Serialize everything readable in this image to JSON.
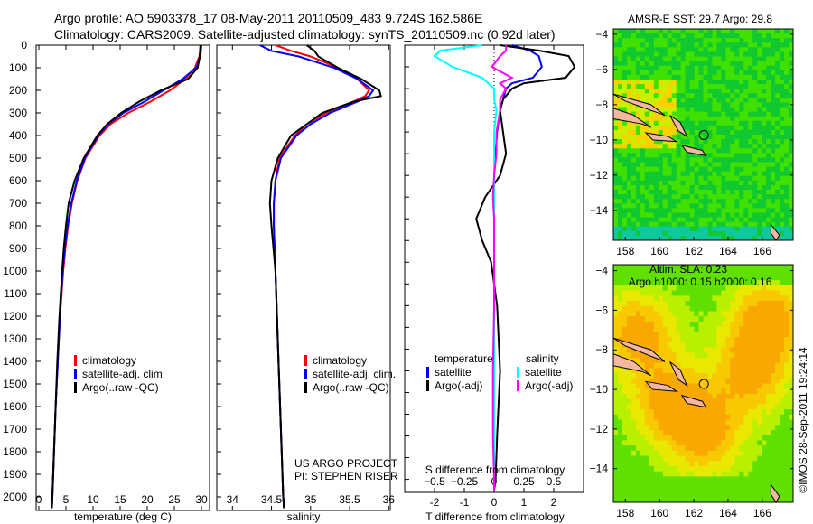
{
  "header": {
    "line1": "Argo profile: AO 5903378_17 08-May-2011 20110509_483 9.724S 162.586E",
    "line2": "Climatology: CARS2009. Satellite-adjusted climatology: synTS_20110509.nc (0.92d later)"
  },
  "colors": {
    "climatology": "#ff0000",
    "satellite": "#0000ff",
    "argo": "#000000",
    "s_satellite": "#00ffff",
    "s_argo": "#ff00ff"
  },
  "chart_data": [
    {
      "type": "line",
      "id": "temperature",
      "xlabel": "temperature (deg C)",
      "ylabel": "",
      "xlim": [
        -0.5,
        31.5
      ],
      "ylim": [
        2060,
        0
      ],
      "xticks": [
        0,
        5,
        10,
        15,
        20,
        25,
        30
      ],
      "yticks": [
        0,
        100,
        200,
        300,
        400,
        500,
        600,
        700,
        800,
        900,
        1000,
        1100,
        1200,
        1300,
        1400,
        1500,
        1600,
        1700,
        1800,
        1900,
        2000
      ],
      "legend": [
        "climatology",
        "satellite-adj. clim.",
        "Argo(..raw -QC)"
      ],
      "legend_position": "bottom-right",
      "depth": [
        0,
        50,
        100,
        150,
        200,
        250,
        300,
        350,
        400,
        500,
        600,
        700,
        800,
        900,
        1000,
        1200,
        1400,
        1600,
        1800,
        2000,
        2050
      ],
      "series": [
        {
          "name": "climatology",
          "values": [
            29.9,
            29.6,
            28.8,
            27.0,
            24.2,
            20.6,
            16.5,
            13.2,
            11.2,
            8.6,
            7.1,
            6.1,
            5.4,
            4.9,
            4.5,
            3.9,
            3.5,
            3.1,
            2.8,
            2.5,
            2.4
          ]
        },
        {
          "name": "satellite-adj. clim.",
          "values": [
            30.0,
            29.8,
            29.0,
            26.5,
            23.0,
            19.5,
            15.6,
            12.8,
            11.0,
            8.5,
            7.0,
            6.0,
            5.3,
            4.8,
            4.4,
            3.9,
            3.5,
            3.1,
            2.8,
            2.5,
            2.4
          ]
        },
        {
          "name": "Argo(..raw -QC)",
          "values": [
            29.8,
            29.7,
            29.3,
            27.5,
            22.5,
            18.5,
            15.2,
            12.6,
            10.8,
            8.3,
            6.6,
            5.5,
            5.0,
            4.6,
            4.3,
            3.8,
            3.4,
            3.1,
            2.8,
            2.5,
            2.4
          ]
        }
      ]
    },
    {
      "type": "line",
      "id": "salinity",
      "xlabel": "salinity",
      "xlim": [
        33.8,
        36.02
      ],
      "ylim": [
        2060,
        0
      ],
      "xticks": [
        34,
        34.5,
        35,
        35.5,
        36
      ],
      "legend": [
        "climatology",
        "satellite-adj. clim.",
        "Argo(..raw -QC)"
      ],
      "legend_position": "bottom-right",
      "annotation": [
        "US ARGO PROJECT",
        "PI: STEPHEN RISER"
      ],
      "depth": [
        0,
        25,
        50,
        100,
        150,
        200,
        225,
        250,
        300,
        350,
        400,
        500,
        600,
        700,
        800,
        1000,
        1200,
        1500,
        1800,
        2000,
        2050
      ],
      "series": [
        {
          "name": "climatology",
          "values": [
            34.55,
            34.75,
            35.0,
            35.35,
            35.6,
            35.75,
            35.7,
            35.55,
            35.2,
            34.95,
            34.8,
            34.6,
            34.55,
            34.53,
            34.53,
            34.55,
            34.57,
            34.6,
            34.63,
            34.65,
            34.66
          ]
        },
        {
          "name": "satellite-adj. clim.",
          "values": [
            34.35,
            34.5,
            34.85,
            35.3,
            35.6,
            35.8,
            35.75,
            35.6,
            35.25,
            35.0,
            34.82,
            34.62,
            34.55,
            34.53,
            34.53,
            34.55,
            34.57,
            34.6,
            34.63,
            34.65,
            34.66
          ]
        },
        {
          "name": "Argo(..raw -QC)",
          "values": [
            34.95,
            35.05,
            35.1,
            35.35,
            35.65,
            35.88,
            35.9,
            35.55,
            35.15,
            34.95,
            34.75,
            34.58,
            34.5,
            34.48,
            34.5,
            34.55,
            34.57,
            34.6,
            34.63,
            34.65,
            34.66
          ]
        }
      ]
    },
    {
      "type": "line",
      "id": "differences",
      "xlabel": "T difference from climatology",
      "xlabel2": "S difference from climatology",
      "xlim": [
        -3,
        3
      ],
      "ylim": [
        2060,
        0
      ],
      "xticks": [
        -2,
        -1,
        0,
        1,
        2
      ],
      "xticks2": [
        -0.5,
        -0.25,
        0,
        0.25,
        0.5
      ],
      "legend_temperature_title": "temperature",
      "legend_salinity_title": "salinity",
      "legend": [
        "satellite",
        "Argo(-adj)",
        "satellite",
        "Argo(-adj)"
      ],
      "depth": [
        0,
        25,
        50,
        100,
        150,
        175,
        200,
        250,
        300,
        400,
        500,
        600,
        700,
        800,
        900,
        1000,
        1200,
        1500,
        1800,
        2000,
        2050
      ],
      "series": [
        {
          "name": "T satellite",
          "quantity": "T",
          "values": [
            0.6,
            1.2,
            1.5,
            1.6,
            1.3,
            0.6,
            0.4,
            0.3,
            0.2,
            0.1,
            0.05,
            0,
            0,
            0,
            0,
            0,
            0,
            0,
            0,
            0,
            0
          ]
        },
        {
          "name": "T Argo(-adj)",
          "quantity": "T",
          "values": [
            0.2,
            1.5,
            2.5,
            2.7,
            2.4,
            1.0,
            0.6,
            0.3,
            0.2,
            0.3,
            0.4,
            0.2,
            -0.3,
            -0.6,
            -0.4,
            -0.1,
            0.1,
            0.2,
            0.1,
            0.05,
            0
          ]
        },
        {
          "name": "S satellite",
          "quantity": "S",
          "values": [
            -0.1,
            -0.45,
            -0.5,
            -0.35,
            -0.1,
            -0.05,
            0.0,
            0.0,
            0.02,
            0.0,
            0.0,
            0.0,
            0,
            0,
            0,
            0,
            0,
            0,
            0,
            0,
            0
          ]
        },
        {
          "name": "S Argo(-adj)",
          "quantity": "S",
          "values": [
            0.1,
            0.1,
            0.05,
            -0.02,
            0.15,
            0.05,
            0.1,
            0.05,
            0.05,
            0.02,
            0.02,
            0.0,
            -0.01,
            0,
            0,
            0,
            0,
            -0.01,
            -0.01,
            0,
            0
          ]
        }
      ]
    },
    {
      "type": "heatmap",
      "id": "sst-map",
      "title": "AMSR-E SST: 29.7 Argo: 29.8",
      "xlim": [
        157.3,
        167.8
      ],
      "ylim": [
        -15.7,
        -3.7
      ],
      "xticks": [
        158,
        160,
        162,
        164,
        166
      ],
      "yticks": [
        -4,
        -6,
        -8,
        -10,
        -12,
        -14
      ],
      "float_position": {
        "lon": 162.586,
        "lat": -9.724
      }
    },
    {
      "type": "heatmap",
      "id": "sla-map",
      "title": "Altim. SLA: 0.23",
      "subtitle": "Argo h1000: 0.15 h2000: 0.16",
      "xlim": [
        157.3,
        167.8
      ],
      "ylim": [
        -15.7,
        -3.7
      ],
      "xticks": [
        158,
        160,
        162,
        164,
        166
      ],
      "yticks": [
        -4,
        -6,
        -8,
        -10,
        -12,
        -14
      ],
      "float_position": {
        "lon": 162.586,
        "lat": -9.724
      }
    }
  ],
  "credit": "©IMOS 28-Sep-2011 19:24:14"
}
